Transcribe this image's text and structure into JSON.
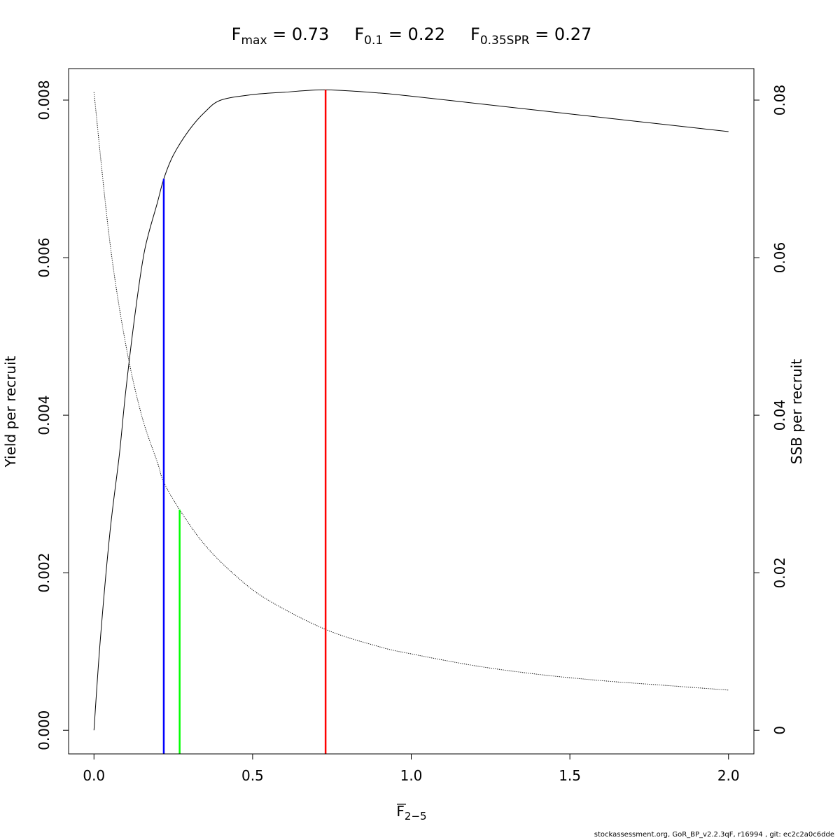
{
  "chart_data": {
    "type": "line",
    "title_parts": [
      {
        "symbol": "F",
        "subscript": "max",
        "equals": "=",
        "value": "0.73"
      },
      {
        "symbol": "F",
        "subscript": "0.1",
        "equals": "=",
        "value": "0.22"
      },
      {
        "symbol": "F",
        "subscript": "0.35SPR",
        "equals": "=",
        "value": "0.27"
      }
    ],
    "xlabel": {
      "symbol": "F",
      "subscript": "2−5"
    },
    "ylabel_left": "Yield per recruit",
    "ylabel_right": "SSB per recruit",
    "xlim": [
      -0.08,
      2.08
    ],
    "ylim_left": [
      -0.0003,
      0.0084
    ],
    "ylim_right": [
      -0.003,
      0.084
    ],
    "x_ticks": [
      0,
      0.5,
      1,
      1.5,
      2
    ],
    "x_tick_labels": [
      "0.0",
      "0.5",
      "1.0",
      "1.5",
      "2.0"
    ],
    "y_left_ticks": [
      0,
      0.002,
      0.004,
      0.006,
      0.008
    ],
    "y_left_tick_labels": [
      "0.000",
      "0.002",
      "0.004",
      "0.006",
      "0.008"
    ],
    "y_right_ticks": [
      0,
      0.02,
      0.04,
      0.06,
      0.08
    ],
    "y_right_tick_labels": [
      "0",
      "0.02",
      "0.04",
      "0.06",
      "0.08"
    ],
    "series": [
      {
        "axis": "left",
        "style": "solid",
        "color": "#000000",
        "x": [
          0,
          0.02,
          0.05,
          0.08,
          0.1,
          0.13,
          0.16,
          0.2,
          0.22,
          0.25,
          0.3,
          0.35,
          0.4,
          0.5,
          0.6,
          0.73,
          0.9,
          1.0,
          1.2,
          1.4,
          1.6,
          1.8,
          2.0
        ],
        "y": [
          0,
          0.00115,
          0.0025,
          0.0035,
          0.0043,
          0.0053,
          0.0061,
          0.0067,
          0.007,
          0.0073,
          0.00762,
          0.00785,
          0.008,
          0.00807,
          0.0081,
          0.00813,
          0.00809,
          0.00805,
          0.00796,
          0.00787,
          0.00778,
          0.00769,
          0.0076
        ]
      },
      {
        "axis": "right",
        "style": "dotted",
        "color": "#000000",
        "x": [
          0,
          0.05,
          0.1,
          0.15,
          0.2,
          0.22,
          0.27,
          0.35,
          0.45,
          0.55,
          0.73,
          0.9,
          1.0,
          1.2,
          1.4,
          1.6,
          1.8,
          2.0
        ],
        "y": [
          0.081,
          0.062,
          0.049,
          0.04,
          0.034,
          0.0315,
          0.028,
          0.0235,
          0.0195,
          0.0165,
          0.0128,
          0.0106,
          0.0097,
          0.0082,
          0.0071,
          0.0063,
          0.0057,
          0.0051
        ]
      }
    ],
    "reference_lines": [
      {
        "name": "F0.1",
        "x": 0.22,
        "y_top": 0.007,
        "axis": "left",
        "color": "#0000ff"
      },
      {
        "name": "F0.35SPR",
        "x": 0.27,
        "y_top": 0.028,
        "axis": "right",
        "color": "#00ff00"
      },
      {
        "name": "Fmax",
        "x": 0.73,
        "y_top": 0.00813,
        "axis": "left",
        "color": "#ff0000"
      }
    ]
  },
  "footer": "stockassessment.org, GoR_BP_v2.2.3qF, r16994 , git: ec2c2a0c6dde"
}
